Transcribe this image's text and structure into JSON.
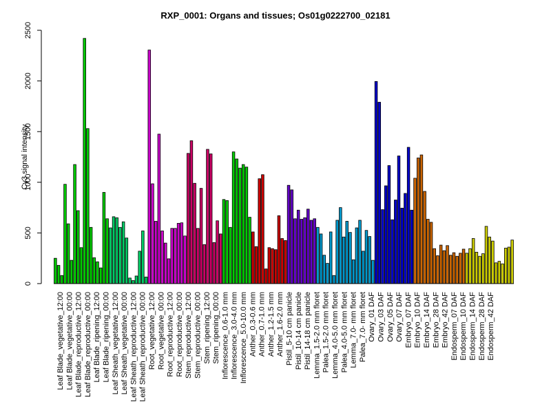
{
  "chart_data": {
    "type": "bar",
    "title": "RXP_0001: Organs and tissues; Os01g0222700_02181",
    "xlabel": "",
    "ylabel": "Cy3 signal intensity",
    "ylim": [
      0,
      2500
    ],
    "yticks": [
      0,
      500,
      1000,
      1500,
      2000,
      2500
    ],
    "grid": false,
    "legend": "none",
    "labeled_categories": [
      "Leaf Blade_vegetative_12:00",
      "Leaf Blade_vegetative_00:00",
      "Leaf Blade_reproductive_12:00",
      "Leaf Blade_reproductive_00:00",
      "Leaf Blade_ripening_12:00",
      "Leaf Blade_ripening_00:00",
      "Leaf Sheath_vegetative_12:00",
      "Leaf Sheath_vegetative_00:00",
      "Leaf Sheath_reproductive_12:00",
      "Leaf Sheath_reproductive_00:00",
      "Root_vegetative_12:00",
      "Root_vegetative_00:00",
      "Root_reproductive_12:00",
      "Root_reproductive_00:00",
      "Stem_reproductive_12:00",
      "Stem_reproductive_00:00",
      "Stem_ripening_12:00",
      "Stem_ripening_00:00",
      "Inflorescence_0.6-1.0 mm",
      "Inflorescence_3.0-4.0 mm",
      "Inflorescence_5.0-10.0 mm",
      "Anther_0.3-0.6 mm",
      "Anther_0.7-1.0 mm",
      "Anther_1.2-1.5 mm",
      "Anther_1.6-2.0 mm",
      "Pistil_5-10 cm panicle",
      "Pistil_10-14 cm panicle",
      "Pistil_14-18 cm panicle",
      "Lemma_1.5-2.0 mm floret",
      "Palea_1.5-2.0 mm floret",
      "Lemma_4.0-5.0 mm floret",
      "Palea_4.0-5.0 mm floret",
      "Lemma_7.0- mm floret",
      "Palea_7.0- mm floret",
      "Ovary_01 DAF",
      "Ovary_03 DAF",
      "Ovary_05 DAF",
      "Ovary_07 DAF",
      "Embryo_07 DAF",
      "Embryo_10 DAF",
      "Embryo_14 DAF",
      "Embryo_28 DAF",
      "Embryo_42 DAF",
      "Endosperm_07 DAF",
      "Endosperm_10 DAF",
      "Endosperm_14 DAF",
      "Endosperm_28 DAF",
      "Endosperm_42 DAF"
    ],
    "groups": [
      {
        "color": "#00cc00",
        "values": [
          250,
          180,
          80,
          980,
          590,
          230,
          1175,
          720,
          355,
          2420,
          1530,
          555,
          255,
          215,
          155,
          900,
          640
        ]
      },
      {
        "color": "#00cc66",
        "values": [
          550,
          660,
          650,
          555,
          610,
          450,
          55,
          30,
          75,
          320,
          520,
          65
        ]
      },
      {
        "color": "#cc00cc",
        "values": [
          2305,
          985,
          615,
          1475,
          520,
          400,
          245,
          545,
          545,
          595,
          600,
          470
        ]
      },
      {
        "color": "#cc0066",
        "values": [
          1285,
          1410,
          990,
          545,
          940,
          385,
          1325,
          1280,
          405,
          620,
          490
        ]
      },
      {
        "color": "#00cc00",
        "values": [
          830,
          820,
          555,
          1300,
          1230,
          1140,
          1175,
          1150,
          655
        ]
      },
      {
        "color": "#cc0000",
        "values": [
          510,
          365,
          1035,
          1075,
          145,
          355,
          345,
          335,
          670,
          445,
          425
        ]
      },
      {
        "color": "#6600cc",
        "values": [
          970,
          925,
          640,
          725,
          635,
          650,
          735,
          625,
          640
        ]
      },
      {
        "color": "#0099cc",
        "values": [
          555,
          490,
          280,
          200,
          510,
          80,
          625,
          750,
          460,
          615,
          505,
          235,
          550,
          625,
          320,
          525,
          465,
          230
        ]
      },
      {
        "color": "#0000cc",
        "values": [
          1995,
          1790,
          730,
          965,
          1165,
          630,
          825,
          1260,
          745,
          890,
          1345,
          725
        ]
      },
      {
        "color": "#cc6600",
        "values": [
          1040,
          1240,
          1270,
          910,
          635,
          605,
          345,
          275,
          380,
          325,
          375,
          280,
          305,
          270,
          300,
          340
        ]
      },
      {
        "color": "#cccc00",
        "values": [
          300,
          345,
          445,
          310,
          270,
          295,
          565,
          460,
          420,
          205,
          220,
          195,
          350,
          360,
          430
        ]
      }
    ]
  }
}
